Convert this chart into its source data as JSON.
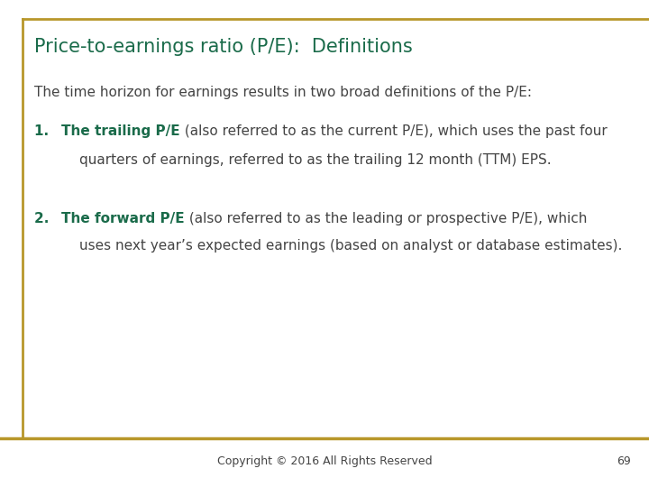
{
  "title": "Price-to-earnings ratio (P/E):  Definitions",
  "title_color": "#1a6b4a",
  "title_fontsize": 15,
  "background_color": "#ffffff",
  "border_color": "#b8972a",
  "footer_line_color": "#b8972a",
  "footer_text": "Copyright © 2016 All Rights Reserved",
  "footer_page": "69",
  "footer_fontsize": 9,
  "body_fontsize": 11,
  "body_text_color": "#444444",
  "green_color": "#1a6b4a",
  "intro_text": "The time horizon for earnings results in two broad definitions of the P/E:",
  "item1_number": "1.  ",
  "item1_bold": "The trailing P/E",
  "item1_rest": " (also referred to as the current P/E), which uses the past four",
  "item1_line2": "quarters of earnings, referred to as the trailing 12 month (TTM) EPS.",
  "item2_number": "2.  ",
  "item2_bold": "The forward P/E",
  "item2_rest": " (also referred to as the leading or prospective P/E), which",
  "item2_line2": "uses next year’s expected earnings (based on analyst or database estimates)."
}
